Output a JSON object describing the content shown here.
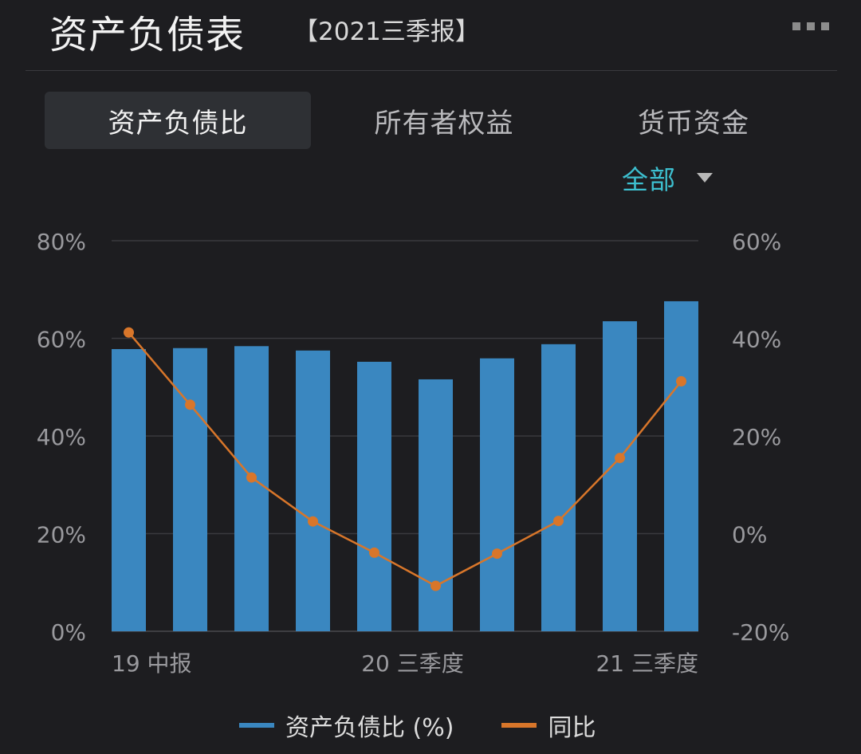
{
  "header": {
    "title": "资产负债表",
    "report_tag": "【2021三季报】"
  },
  "tabs": [
    {
      "label": "资产负债比",
      "active": true
    },
    {
      "label": "所有者权益",
      "active": false
    },
    {
      "label": "货币资金",
      "active": false
    }
  ],
  "filter": {
    "selected": "全部",
    "icon": "caret-down-icon"
  },
  "colors": {
    "bar": "#3a87c0",
    "line": "#d8762a",
    "accent": "#3dbfcf",
    "grid": "#3a3a3e",
    "tick": "#9a9a9e"
  },
  "chart_data": {
    "type": "bar",
    "categories": [
      "19中报",
      "",
      "",
      "",
      "20三季度",
      "",
      "",
      "",
      "21三季度",
      ""
    ],
    "x_tick_labels": [
      "19 中报",
      "20 三季度",
      "21 三季度"
    ],
    "left_axis": {
      "ylim": [
        0,
        80
      ],
      "ticks": [
        "0%",
        "20%",
        "40%",
        "60%",
        "80%"
      ],
      "tick_values": [
        0,
        20,
        40,
        60,
        80
      ]
    },
    "right_axis": {
      "ylim": [
        -20,
        60
      ],
      "ticks": [
        "-20%",
        "0%",
        "20%",
        "40%",
        "60%"
      ],
      "tick_values": [
        -20,
        0,
        20,
        40,
        60
      ]
    },
    "series": [
      {
        "name": "资产负债比 (%)",
        "type": "bar",
        "axis": "left",
        "values": [
          57.8,
          58.0,
          58.4,
          57.5,
          55.2,
          51.6,
          55.9,
          58.8,
          63.5,
          67.6
        ]
      },
      {
        "name": "同比",
        "type": "line",
        "axis": "right",
        "values": [
          41.2,
          26.4,
          11.5,
          2.5,
          -3.9,
          -10.7,
          -4.1,
          2.6,
          15.5,
          31.2
        ]
      }
    ],
    "grid": true,
    "legend_position": "bottom"
  }
}
